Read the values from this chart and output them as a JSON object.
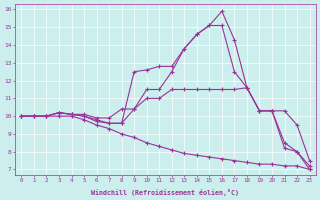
{
  "xlabel": "Windchill (Refroidissement éolien,°C)",
  "xlim": [
    -0.5,
    23.5
  ],
  "ylim": [
    6.7,
    16.3
  ],
  "xticks": [
    0,
    1,
    2,
    3,
    4,
    5,
    6,
    7,
    8,
    9,
    10,
    11,
    12,
    13,
    14,
    15,
    16,
    17,
    18,
    19,
    20,
    21,
    22,
    23
  ],
  "yticks": [
    7,
    8,
    9,
    10,
    11,
    12,
    13,
    14,
    15,
    16
  ],
  "bg_color": "#cceeed",
  "line_color": "#993399",
  "series": [
    [
      10.0,
      10.0,
      10.0,
      10.2,
      10.1,
      10.0,
      9.7,
      9.6,
      9.6,
      12.5,
      12.6,
      12.8,
      12.8,
      13.8,
      14.6,
      15.1,
      15.9,
      14.3,
      11.6,
      10.3,
      10.3,
      8.2,
      8.0,
      7.0
    ],
    [
      10.0,
      10.0,
      10.0,
      10.2,
      10.1,
      10.0,
      9.8,
      9.6,
      9.6,
      10.4,
      11.5,
      11.5,
      12.5,
      13.8,
      14.6,
      15.1,
      15.1,
      12.5,
      11.6,
      10.3,
      10.3,
      8.5,
      8.0,
      7.2
    ],
    [
      10.0,
      10.0,
      10.0,
      10.2,
      10.1,
      10.1,
      9.9,
      9.9,
      10.4,
      10.4,
      11.0,
      11.0,
      11.5,
      11.5,
      11.5,
      11.5,
      11.5,
      11.5,
      11.6,
      10.3,
      10.3,
      10.3,
      9.5,
      7.5
    ],
    [
      10.0,
      10.0,
      10.0,
      10.0,
      10.0,
      9.8,
      9.5,
      9.3,
      9.0,
      8.8,
      8.5,
      8.3,
      8.1,
      7.9,
      7.8,
      7.7,
      7.6,
      7.5,
      7.4,
      7.3,
      7.3,
      7.2,
      7.2,
      7.0
    ]
  ]
}
